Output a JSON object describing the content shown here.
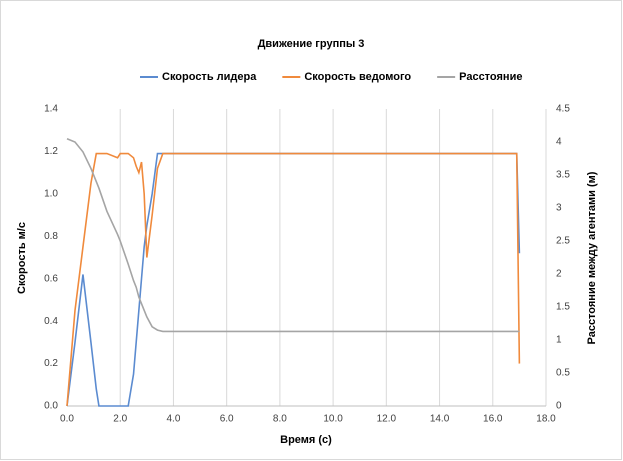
{
  "chart_data": {
    "type": "line",
    "title": "Движение группы 3",
    "x_label": "Время (с)",
    "y_label": "Скорость м/с",
    "y2_label": "Расстояние между агентами (м)",
    "x": [
      0,
      0.3,
      0.6,
      0.9,
      1.1,
      1.2,
      1.5,
      1.9,
      2.0,
      2.3,
      2.5,
      2.6,
      2.7,
      2.8,
      2.9,
      3.0,
      3.2,
      3.4,
      3.6,
      4.0,
      8,
      12,
      16.9,
      17.0
    ],
    "series": [
      {
        "name": "Скорость лидера",
        "color": "#5b8bd0",
        "values": [
          0,
          0.3,
          0.62,
          0.3,
          0.08,
          0,
          0,
          0,
          0,
          0,
          0.15,
          0.3,
          0.45,
          0.6,
          0.75,
          0.85,
          1.0,
          1.19,
          1.19,
          1.19,
          1.19,
          1.19,
          1.19,
          0.72
        ]
      },
      {
        "name": "Скорость ведомого",
        "color": "#f08a3c",
        "values": [
          0,
          0.45,
          0.75,
          1.05,
          1.19,
          1.19,
          1.19,
          1.17,
          1.19,
          1.19,
          1.17,
          1.13,
          1.1,
          1.15,
          1.0,
          0.7,
          0.9,
          1.12,
          1.19,
          1.19,
          1.19,
          1.19,
          1.19,
          0.2
        ]
      },
      {
        "name": "Расстояние",
        "color": "#a5a5a5",
        "axis": "y2",
        "values": [
          4.05,
          4.0,
          3.85,
          3.6,
          3.4,
          3.3,
          2.95,
          2.6,
          2.5,
          2.15,
          1.9,
          1.8,
          1.65,
          1.55,
          1.45,
          1.35,
          1.2,
          1.15,
          1.13,
          1.13,
          1.13,
          1.13,
          1.13,
          1.13
        ]
      }
    ],
    "xlim": [
      0,
      18
    ],
    "xticks": [
      {
        "value": 0,
        "label": "0.0"
      },
      {
        "value": 2,
        "label": "2.0"
      },
      {
        "value": 4,
        "label": "4.0"
      },
      {
        "value": 6,
        "label": "6.0"
      },
      {
        "value": 8,
        "label": "8.0"
      },
      {
        "value": 10,
        "label": "10.0"
      },
      {
        "value": 12,
        "label": "12.0"
      },
      {
        "value": 14,
        "label": "14.0"
      },
      {
        "value": 16,
        "label": "16.0"
      },
      {
        "value": 18,
        "label": "18.0"
      }
    ],
    "ylim": [
      0,
      1.4
    ],
    "yticks": [
      {
        "value": 0,
        "label": "0.0"
      },
      0.2,
      0.4,
      0.6,
      0.8,
      {
        "value": 1,
        "label": "1.0"
      },
      1.2,
      1.4
    ],
    "y2lim": [
      0,
      4.5
    ],
    "y2ticks": [
      0,
      0.5,
      1,
      1.5,
      2,
      2.5,
      3,
      3.5,
      4,
      4.5
    ],
    "grid": "x",
    "legend": "top"
  }
}
